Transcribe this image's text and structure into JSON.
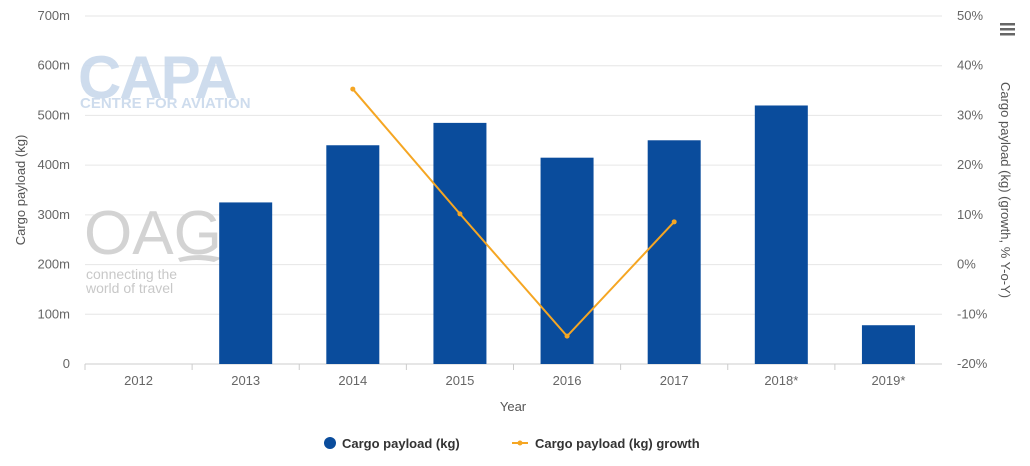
{
  "watermarks": {
    "capa_logo": "CAPA",
    "capa_sub": "CENTRE FOR AVIATION",
    "oag_logo": "OAG",
    "oag_tagline_1": "connecting the",
    "oag_tagline_2": "world of travel"
  },
  "menu_icon": "hamburger-menu-icon",
  "colors": {
    "bar": "#0A4C9C",
    "line": "#F5A623",
    "grid": "#E6E6E6",
    "watermark": "#C9D9EC"
  },
  "chart_data": {
    "type": "bar",
    "categories": [
      "2012",
      "2013",
      "2014",
      "2015",
      "2016",
      "2017",
      "2018*",
      "2019*"
    ],
    "xlabel": "Year",
    "ylabel": "Cargo payload (kg)",
    "y2label": "Cargo payload (kg) (growth, % Y-o-Y)",
    "ylim": [
      0,
      700000000
    ],
    "y2lim": [
      -20,
      50
    ],
    "y_ticks": [
      "0",
      "100m",
      "200m",
      "300m",
      "400m",
      "500m",
      "600m",
      "700m"
    ],
    "y2_ticks": [
      "-20%",
      "-10%",
      "0%",
      "10%",
      "20%",
      "30%",
      "40%",
      "50%"
    ],
    "grid": true,
    "legend_position": "bottom-center",
    "series": [
      {
        "name": "Cargo payload (kg)",
        "kind": "bar",
        "axis": "left",
        "values": [
          0,
          325000000,
          440000000,
          485000000,
          415000000,
          450000000,
          520000000,
          78000000
        ]
      },
      {
        "name": "Cargo payload (kg) growth",
        "kind": "line",
        "axis": "right",
        "values": [
          null,
          null,
          35.3,
          10.2,
          -14.4,
          8.6,
          null,
          null
        ]
      }
    ]
  }
}
